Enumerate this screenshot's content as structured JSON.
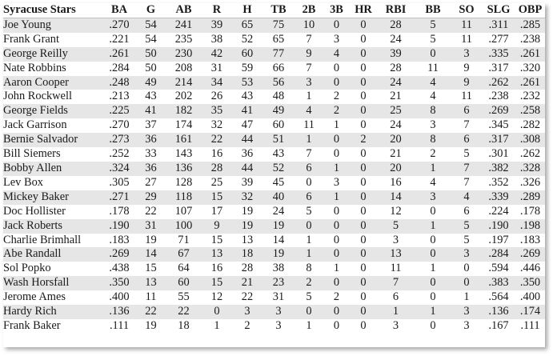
{
  "team": "Syracuse Stars",
  "columns": [
    "BA",
    "G",
    "AB",
    "R",
    "H",
    "TB",
    "2B",
    "3B",
    "HR",
    "RBI",
    "BB",
    "SO",
    "SLG",
    "OBP"
  ],
  "rows": [
    {
      "name": "Joe Young",
      "stats": [
        ".270",
        "54",
        "241",
        "39",
        "65",
        "75",
        "10",
        "0",
        "0",
        "28",
        "5",
        "11",
        ".311",
        ".285"
      ]
    },
    {
      "name": "Frank Grant",
      "stats": [
        ".221",
        "54",
        "235",
        "38",
        "52",
        "65",
        "7",
        "3",
        "0",
        "24",
        "5",
        "11",
        ".277",
        ".238"
      ]
    },
    {
      "name": "George Reilly",
      "stats": [
        ".261",
        "50",
        "230",
        "42",
        "60",
        "77",
        "9",
        "4",
        "0",
        "39",
        "0",
        "3",
        ".335",
        ".261"
      ]
    },
    {
      "name": "Nate Robbins",
      "stats": [
        ".284",
        "50",
        "208",
        "31",
        "59",
        "66",
        "7",
        "0",
        "0",
        "28",
        "11",
        "9",
        ".317",
        ".320"
      ]
    },
    {
      "name": "Aaron Cooper",
      "stats": [
        ".248",
        "49",
        "214",
        "34",
        "53",
        "56",
        "3",
        "0",
        "0",
        "24",
        "4",
        "9",
        ".262",
        ".261"
      ]
    },
    {
      "name": "John Rockwell",
      "stats": [
        ".213",
        "43",
        "202",
        "26",
        "43",
        "48",
        "1",
        "2",
        "0",
        "21",
        "4",
        "11",
        ".238",
        ".232"
      ]
    },
    {
      "name": "George Fields",
      "stats": [
        ".225",
        "41",
        "182",
        "35",
        "41",
        "49",
        "4",
        "2",
        "0",
        "25",
        "8",
        "6",
        ".269",
        ".258"
      ]
    },
    {
      "name": "Jack Garrison",
      "stats": [
        ".270",
        "37",
        "174",
        "32",
        "47",
        "60",
        "11",
        "1",
        "0",
        "24",
        "3",
        "7",
        ".345",
        ".282"
      ]
    },
    {
      "name": "Bernie Salvador",
      "stats": [
        ".273",
        "36",
        "161",
        "22",
        "44",
        "51",
        "1",
        "0",
        "2",
        "20",
        "8",
        "6",
        ".317",
        ".308"
      ]
    },
    {
      "name": "Bill Siemers",
      "stats": [
        ".252",
        "33",
        "143",
        "16",
        "36",
        "43",
        "7",
        "0",
        "0",
        "21",
        "2",
        "5",
        ".301",
        ".262"
      ]
    },
    {
      "name": "Bobby Allen",
      "stats": [
        ".324",
        "36",
        "136",
        "28",
        "44",
        "52",
        "6",
        "1",
        "0",
        "20",
        "1",
        "7",
        ".382",
        ".328"
      ]
    },
    {
      "name": "Lev Box",
      "stats": [
        ".305",
        "27",
        "128",
        "25",
        "39",
        "45",
        "0",
        "3",
        "0",
        "16",
        "4",
        "7",
        ".352",
        ".326"
      ]
    },
    {
      "name": "Mickey Baker",
      "stats": [
        ".271",
        "29",
        "118",
        "15",
        "32",
        "40",
        "6",
        "1",
        "0",
        "14",
        "3",
        "4",
        ".339",
        ".289"
      ]
    },
    {
      "name": "Doc Hollister",
      "stats": [
        ".178",
        "22",
        "107",
        "17",
        "19",
        "24",
        "5",
        "0",
        "0",
        "12",
        "0",
        "6",
        ".224",
        ".178"
      ]
    },
    {
      "name": "Jack Roberts",
      "stats": [
        ".190",
        "31",
        "100",
        "9",
        "19",
        "19",
        "0",
        "0",
        "0",
        "5",
        "1",
        "5",
        ".190",
        ".198"
      ]
    },
    {
      "name": "Charlie Brimhall",
      "stats": [
        ".183",
        "19",
        "71",
        "15",
        "13",
        "14",
        "1",
        "0",
        "0",
        "3",
        "0",
        "5",
        ".197",
        ".183"
      ]
    },
    {
      "name": "Abe Randall",
      "stats": [
        ".269",
        "14",
        "67",
        "13",
        "18",
        "19",
        "1",
        "0",
        "0",
        "13",
        "0",
        "3",
        ".284",
        ".269"
      ]
    },
    {
      "name": "Sol Popko",
      "stats": [
        ".438",
        "15",
        "64",
        "16",
        "28",
        "38",
        "8",
        "1",
        "0",
        "11",
        "1",
        "0",
        ".594",
        ".446"
      ]
    },
    {
      "name": "Wash Horsfall",
      "stats": [
        ".350",
        "13",
        "60",
        "15",
        "21",
        "23",
        "2",
        "0",
        "0",
        "7",
        "0",
        "0",
        ".383",
        ".350"
      ]
    },
    {
      "name": "Jerome Ames",
      "stats": [
        ".400",
        "11",
        "55",
        "12",
        "22",
        "31",
        "5",
        "2",
        "0",
        "6",
        "0",
        "1",
        ".564",
        ".400"
      ]
    },
    {
      "name": "Hardy Rich",
      "stats": [
        ".136",
        "22",
        "22",
        "0",
        "3",
        "3",
        "0",
        "0",
        "0",
        "1",
        "1",
        "3",
        ".136",
        ".174"
      ]
    },
    {
      "name": "Frank Baker",
      "stats": [
        ".111",
        "19",
        "18",
        "1",
        "2",
        "3",
        "1",
        "0",
        "0",
        "3",
        "0",
        "3",
        ".167",
        ".111"
      ]
    }
  ]
}
